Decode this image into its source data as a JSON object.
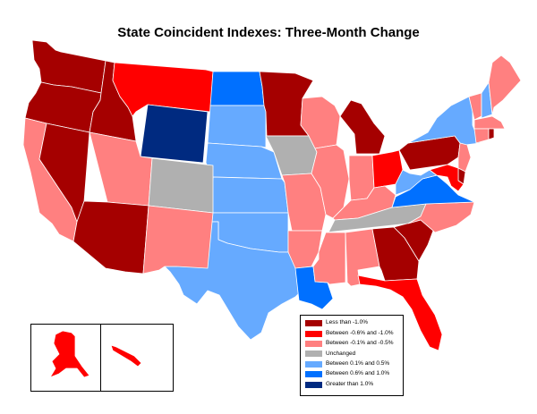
{
  "title": "State Coincident Indexes: Three-Month Change",
  "legend": [
    {
      "label": "Less than -1.0%",
      "color": "#a50000"
    },
    {
      "label": "Between -0.6% and -1.0%",
      "color": "#ff0000"
    },
    {
      "label": "Between -0.1% and -0.5%",
      "color": "#ff8080"
    },
    {
      "label": "Unchanged",
      "color": "#b0b0b0"
    },
    {
      "label": "Between 0.1% and 0.5%",
      "color": "#66aaff"
    },
    {
      "label": "Between 0.6% and 1.0%",
      "color": "#0070ff"
    },
    {
      "label": "Greater than 1.0%",
      "color": "#002a80"
    }
  ],
  "states": [
    {
      "name": "WA",
      "category": 0
    },
    {
      "name": "OR",
      "category": 0
    },
    {
      "name": "ID",
      "category": 0
    },
    {
      "name": "MT",
      "category": 1
    },
    {
      "name": "WY",
      "category": 6
    },
    {
      "name": "ND",
      "category": 5
    },
    {
      "name": "SD",
      "category": 4
    },
    {
      "name": "NE",
      "category": 4
    },
    {
      "name": "KS",
      "category": 4
    },
    {
      "name": "OK",
      "category": 4
    },
    {
      "name": "TX",
      "category": 4
    },
    {
      "name": "CA",
      "category": 2
    },
    {
      "name": "NV",
      "category": 0
    },
    {
      "name": "UT",
      "category": 2
    },
    {
      "name": "CO",
      "category": 3
    },
    {
      "name": "AZ",
      "category": 0
    },
    {
      "name": "NM",
      "category": 2
    },
    {
      "name": "MN",
      "category": 0
    },
    {
      "name": "IA",
      "category": 3
    },
    {
      "name": "MO",
      "category": 2
    },
    {
      "name": "AR",
      "category": 2
    },
    {
      "name": "LA",
      "category": 5
    },
    {
      "name": "WI",
      "category": 2
    },
    {
      "name": "IL",
      "category": 2
    },
    {
      "name": "MI",
      "category": 0
    },
    {
      "name": "IN",
      "category": 2
    },
    {
      "name": "OH",
      "category": 1
    },
    {
      "name": "KY",
      "category": 2
    },
    {
      "name": "TN",
      "category": 3
    },
    {
      "name": "MS",
      "category": 2
    },
    {
      "name": "AL",
      "category": 2
    },
    {
      "name": "GA",
      "category": 0
    },
    {
      "name": "FL",
      "category": 1
    },
    {
      "name": "SC",
      "category": 0
    },
    {
      "name": "NC",
      "category": 2
    },
    {
      "name": "VA",
      "category": 5
    },
    {
      "name": "WV",
      "category": 4
    },
    {
      "name": "PA",
      "category": 0
    },
    {
      "name": "NY",
      "category": 4
    },
    {
      "name": "VT",
      "category": 2
    },
    {
      "name": "NH",
      "category": 4
    },
    {
      "name": "ME",
      "category": 2
    },
    {
      "name": "MA",
      "category": 2
    },
    {
      "name": "CT",
      "category": 2
    },
    {
      "name": "RI",
      "category": 0
    },
    {
      "name": "NJ",
      "category": 2
    },
    {
      "name": "DE",
      "category": 0
    },
    {
      "name": "MD",
      "category": 1
    },
    {
      "name": "AK",
      "category": 1
    },
    {
      "name": "HI",
      "category": 1
    }
  ]
}
